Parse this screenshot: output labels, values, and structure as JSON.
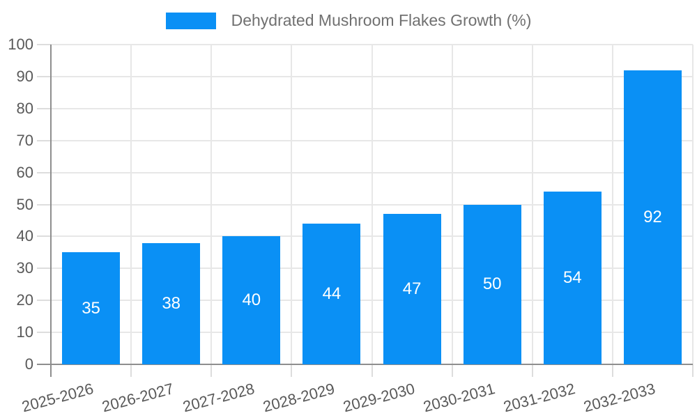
{
  "legend": {
    "label": "Dehydrated Mushroom Flakes Growth (%)"
  },
  "chart_data": {
    "type": "bar",
    "title": "",
    "xlabel": "",
    "ylabel": "",
    "categories": [
      "2025-2026",
      "2026-2027",
      "2027-2028",
      "2028-2029",
      "2029-2030",
      "2030-2031",
      "2031-2032",
      "2032-2033"
    ],
    "series": [
      {
        "name": "Dehydrated Mushroom Flakes Growth (%)",
        "values": [
          35,
          38,
          40,
          44,
          47,
          50,
          54,
          92
        ]
      }
    ],
    "value_labels_shown": true,
    "ylim": [
      0,
      100
    ],
    "ytick_step": 10,
    "grid": true,
    "legend_position": "top-center",
    "colors": {
      "bar": "#0a90f5",
      "bar_value_text": "#ffffff",
      "gridline": "#e7e7e7",
      "tick_mark": "#dddddd",
      "axis_spine": "#8e8e8e",
      "tick_label": "#595959",
      "legend_text": "#707070",
      "background": "#ffffff"
    }
  }
}
